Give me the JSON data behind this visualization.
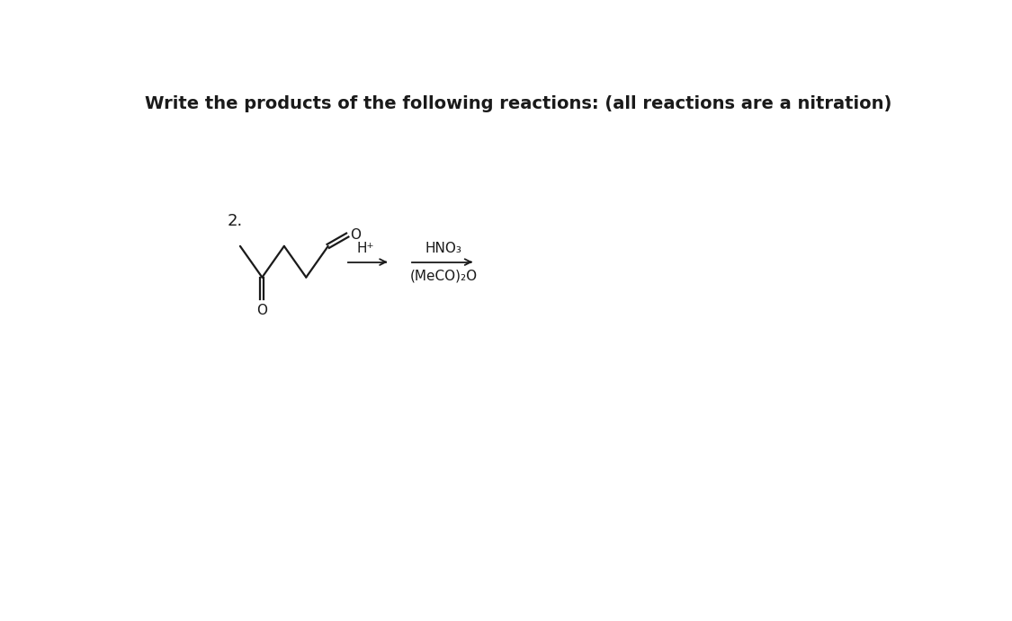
{
  "title": "Write the products of the following reactions: (all reactions are a nitration)",
  "problem_number": "2.",
  "arrow1_label": "H⁺",
  "arrow2_line1": "HNO₃",
  "arrow2_line2": "(MeCO)₂O",
  "bg_color": "#ffffff",
  "text_color": "#1a1a1a",
  "title_fontsize": 14,
  "label_fontsize": 12,
  "number_fontsize": 13,
  "mol_lw": 1.6
}
